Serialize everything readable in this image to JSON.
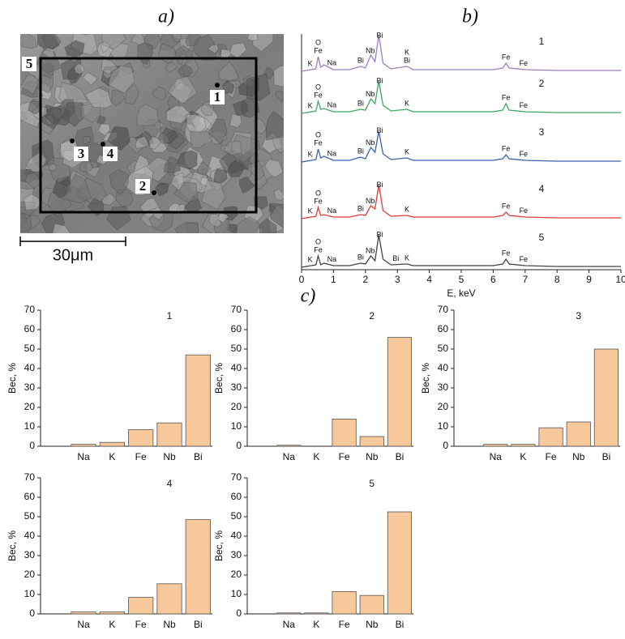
{
  "panels": {
    "a": "a)",
    "b": "b)",
    "c": "c)"
  },
  "micrograph": {
    "points": [
      "1",
      "2",
      "3",
      "4"
    ],
    "frame": "5",
    "scale_bar": "30μm"
  },
  "chart_data": [
    {
      "type": "line",
      "xlabel": "E, keV",
      "xlim": [
        0,
        10
      ],
      "xticks": [
        0,
        1,
        2,
        3,
        4,
        5,
        6,
        7,
        8,
        9,
        10
      ],
      "x": [
        0,
        0.3,
        0.45,
        0.52,
        0.6,
        0.7,
        1.0,
        1.5,
        1.85,
        2.0,
        2.17,
        2.3,
        2.42,
        2.55,
        2.8,
        3.3,
        3.5,
        4,
        5,
        6,
        6.3,
        6.4,
        6.5,
        7,
        8,
        9,
        10
      ],
      "series": [
        {
          "name": "1",
          "color": "#9b7fc0",
          "values": [
            0,
            2,
            3,
            18,
            5,
            8,
            2,
            2,
            6,
            4,
            20,
            12,
            45,
            10,
            3,
            6,
            2,
            2,
            2,
            2,
            4,
            10,
            4,
            2,
            1,
            1,
            1
          ],
          "peak_labels": [
            {
              "text": "K",
              "x": 0.27
            },
            {
              "text": "Fe",
              "x": 0.52
            },
            {
              "text": "O",
              "x": 0.52
            },
            {
              "text": "Na",
              "x": 0.95
            },
            {
              "text": "Bi",
              "x": 1.85
            },
            {
              "text": "Nb",
              "x": 2.15
            },
            {
              "text": "Bi",
              "x": 2.45
            },
            {
              "text": "Bi",
              "x": 3.3
            },
            {
              "text": "K",
              "x": 3.3
            },
            {
              "text": "Fe",
              "x": 6.4
            },
            {
              "text": "Fe",
              "x": 6.95
            }
          ]
        },
        {
          "name": "2",
          "color": "#3aa860",
          "values": [
            0,
            2,
            3,
            15,
            5,
            6,
            2,
            2,
            5,
            4,
            18,
            12,
            40,
            10,
            3,
            5,
            2,
            2,
            2,
            2,
            4,
            12,
            4,
            2,
            1,
            1,
            1
          ],
          "peak_labels": [
            {
              "text": "K",
              "x": 0.27
            },
            {
              "text": "Fe",
              "x": 0.52
            },
            {
              "text": "O",
              "x": 0.52
            },
            {
              "text": "Na",
              "x": 0.95
            },
            {
              "text": "Bi",
              "x": 1.85
            },
            {
              "text": "Nb",
              "x": 2.15
            },
            {
              "text": "Bi",
              "x": 2.45
            },
            {
              "text": "K",
              "x": 3.3
            },
            {
              "text": "Fe",
              "x": 6.4
            },
            {
              "text": "Fe",
              "x": 6.95
            }
          ]
        },
        {
          "name": "3",
          "color": "#3a62b0",
          "values": [
            0,
            2,
            3,
            16,
            5,
            7,
            2,
            2,
            6,
            4,
            18,
            12,
            38,
            10,
            3,
            5,
            2,
            2,
            2,
            2,
            4,
            9,
            4,
            2,
            1,
            1,
            1
          ],
          "peak_labels": [
            {
              "text": "K",
              "x": 0.27
            },
            {
              "text": "Fe",
              "x": 0.52
            },
            {
              "text": "O",
              "x": 0.52
            },
            {
              "text": "Na",
              "x": 0.95
            },
            {
              "text": "Bi",
              "x": 1.85
            },
            {
              "text": "Nb",
              "x": 2.15
            },
            {
              "text": "Bi",
              "x": 2.45
            },
            {
              "text": "K",
              "x": 3.3
            },
            {
              "text": "Fe",
              "x": 6.4
            },
            {
              "text": "Fe",
              "x": 6.95
            }
          ]
        },
        {
          "name": "4",
          "color": "#e03a3a",
          "values": [
            0,
            2,
            3,
            14,
            4,
            5,
            2,
            2,
            5,
            4,
            16,
            12,
            42,
            10,
            3,
            4,
            2,
            2,
            2,
            2,
            4,
            8,
            4,
            2,
            1,
            1,
            1
          ],
          "peak_labels": [
            {
              "text": "K",
              "x": 0.27
            },
            {
              "text": "Fe",
              "x": 0.52
            },
            {
              "text": "O",
              "x": 0.52
            },
            {
              "text": "Na",
              "x": 0.95
            },
            {
              "text": "Bi",
              "x": 1.85
            },
            {
              "text": "Nb",
              "x": 2.15
            },
            {
              "text": "Bi",
              "x": 2.45
            },
            {
              "text": "K",
              "x": 3.3
            },
            {
              "text": "Fe",
              "x": 6.4
            },
            {
              "text": "Fe",
              "x": 6.95
            }
          ]
        },
        {
          "name": "5",
          "color": "#444444",
          "values": [
            0,
            2,
            3,
            14,
            3,
            5,
            2,
            2,
            5,
            4,
            14,
            8,
            40,
            10,
            3,
            4,
            2,
            2,
            2,
            2,
            4,
            10,
            4,
            2,
            1,
            1,
            1
          ],
          "peak_labels": [
            {
              "text": "K",
              "x": 0.27
            },
            {
              "text": "Fe",
              "x": 0.52
            },
            {
              "text": "O",
              "x": 0.52
            },
            {
              "text": "Na",
              "x": 0.95
            },
            {
              "text": "Bi",
              "x": 1.85
            },
            {
              "text": "Nb",
              "x": 2.15
            },
            {
              "text": "Bi",
              "x": 2.45
            },
            {
              "text": "Bi",
              "x": 2.95
            },
            {
              "text": "K",
              "x": 3.3
            },
            {
              "text": "Fe",
              "x": 6.4
            },
            {
              "text": "Fe",
              "x": 6.95
            }
          ]
        }
      ]
    },
    {
      "type": "bar",
      "title": "1",
      "ylabel": "Вес, %",
      "categories": [
        null,
        "Na",
        "K",
        "Fe",
        "Nb",
        "Bi"
      ],
      "values": [
        null,
        1,
        2,
        8.5,
        12,
        47
      ],
      "color": "#f7c99a",
      "ylim": [
        0,
        70
      ],
      "yticks": [
        0,
        10,
        20,
        30,
        40,
        50,
        60,
        70
      ]
    },
    {
      "type": "bar",
      "title": "2",
      "ylabel": "Вес, %",
      "categories": [
        null,
        "Na",
        "K",
        "Fe",
        "Nb",
        "Bi"
      ],
      "values": [
        null,
        0.5,
        0,
        14,
        5,
        56
      ],
      "color": "#f7c99a",
      "ylim": [
        0,
        70
      ],
      "yticks": [
        0,
        10,
        20,
        30,
        40,
        50,
        60,
        70
      ]
    },
    {
      "type": "bar",
      "title": "3",
      "ylabel": "Вес, %",
      "categories": [
        null,
        "Na",
        "K",
        "Fe",
        "Nb",
        "Bi"
      ],
      "values": [
        null,
        1,
        1,
        9.5,
        12.5,
        50
      ],
      "color": "#f7c99a",
      "ylim": [
        0,
        70
      ],
      "yticks": [
        0,
        10,
        20,
        30,
        40,
        50,
        60,
        70
      ]
    },
    {
      "type": "bar",
      "title": "4",
      "ylabel": "Вес, %",
      "categories": [
        null,
        "Na",
        "K",
        "Fe",
        "Nb",
        "Bi"
      ],
      "values": [
        null,
        1,
        1,
        8.5,
        15.5,
        48.5
      ],
      "color": "#f7c99a",
      "ylim": [
        0,
        70
      ],
      "yticks": [
        0,
        10,
        20,
        30,
        40,
        50,
        60,
        70
      ]
    },
    {
      "type": "bar",
      "title": "5",
      "ylabel": "Вес, %",
      "categories": [
        null,
        "Na",
        "K",
        "Fe",
        "Nb",
        "Bi"
      ],
      "values": [
        null,
        0.5,
        0.5,
        11.5,
        9.5,
        52.5
      ],
      "color": "#f7c99a",
      "ylim": [
        0,
        70
      ],
      "yticks": [
        0,
        10,
        20,
        30,
        40,
        50,
        60,
        70
      ]
    }
  ]
}
